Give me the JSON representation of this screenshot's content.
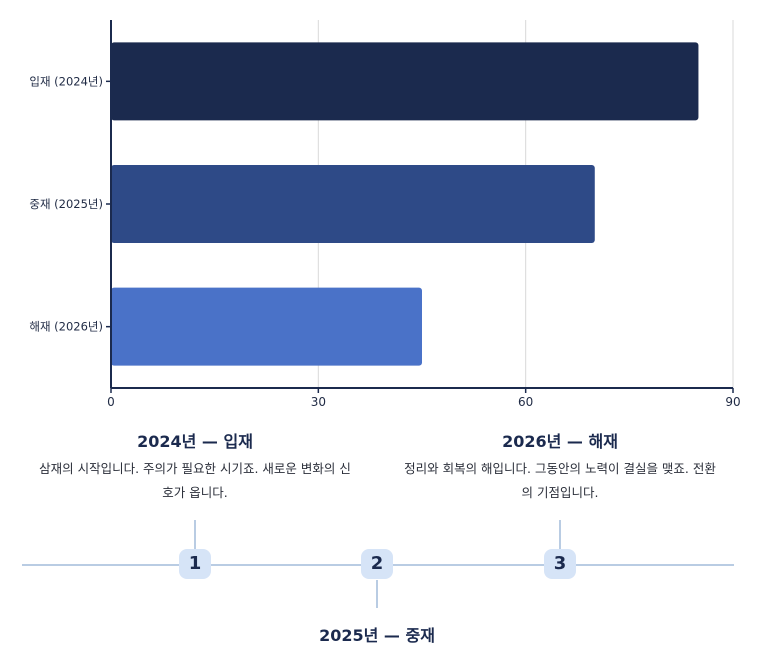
{
  "chart_data": {
    "type": "bar",
    "orientation": "horizontal",
    "categories": [
      "입재 (2024년)",
      "중재 (2025년)",
      "해재 (2026년)"
    ],
    "values": [
      85,
      70,
      45
    ],
    "colors": [
      "#1b2a4e",
      "#2e4a87",
      "#4a72c8"
    ],
    "xlim": [
      0,
      90
    ],
    "xticks": [
      "0",
      "30",
      "60",
      "90"
    ],
    "grid": true
  },
  "timeline": {
    "items": [
      {
        "number": "1",
        "title": "2024년 — 입재",
        "desc": "삼재의 시작입니다. 주의가 필요한 시기죠. 새로운 변화의 신호가 옵니다."
      },
      {
        "number": "2",
        "title": "2025년 — 중재",
        "desc": ""
      },
      {
        "number": "3",
        "title": "2026년 — 해재",
        "desc": "정리와 회복의 해입니다. 그동안의 노력이 결실을 맺죠. 전환의 기점입니다."
      }
    ]
  },
  "colors": {
    "axis": "#1b2a4e",
    "grid": "#d9d9d9",
    "timeline": "#b9cce3",
    "badge": "#d6e4f7"
  }
}
